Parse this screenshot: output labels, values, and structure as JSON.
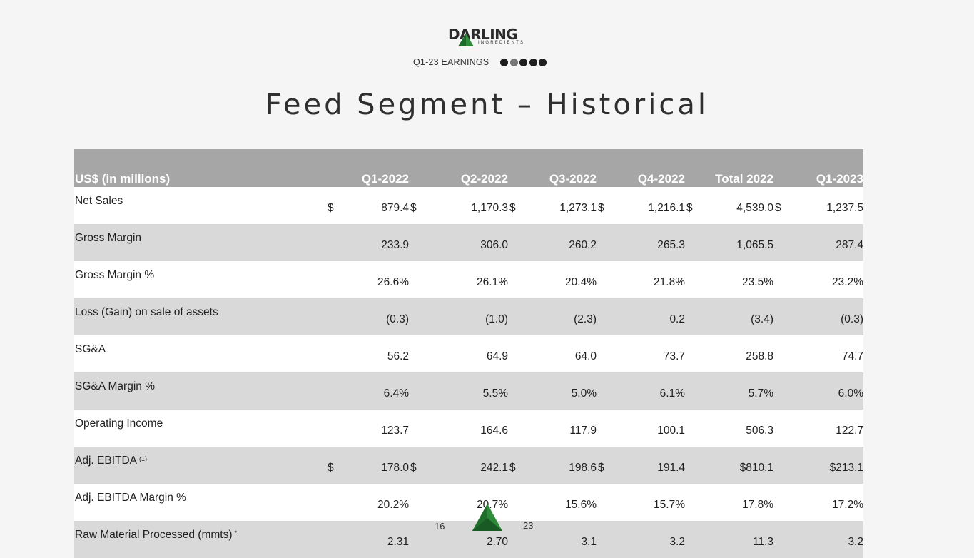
{
  "header": {
    "logo_word": "DARLING",
    "logo_sub": "INGREDIENTS",
    "subtitle": "Q1-23 EARNINGS",
    "progress_dots": 5,
    "active_dot": 1
  },
  "title": "Feed Segment – Historical",
  "table": {
    "columns": [
      "US$ (in millions)",
      "Q1-2022",
      "Q2-2022",
      "Q3-2022",
      "Q4-2022",
      "Total 2022",
      "Q1-2023"
    ],
    "rows": [
      {
        "label": "Net Sales",
        "fn": "",
        "cells": [
          {
            "d": "$",
            "v": "879.4"
          },
          {
            "d": "$",
            "v": "1,170.3"
          },
          {
            "d": "$",
            "v": "1,273.1"
          },
          {
            "d": "$",
            "v": "1,216.1"
          },
          {
            "d": "$",
            "v": "4,539.0"
          },
          {
            "d": "$",
            "v": "1,237.5"
          }
        ]
      },
      {
        "label": "Gross Margin",
        "fn": "",
        "cells": [
          {
            "d": "",
            "v": "233.9"
          },
          {
            "d": "",
            "v": "306.0"
          },
          {
            "d": "",
            "v": "260.2"
          },
          {
            "d": "",
            "v": "265.3"
          },
          {
            "d": "",
            "v": "1,065.5"
          },
          {
            "d": "",
            "v": "287.4"
          }
        ]
      },
      {
        "label": "Gross Margin %",
        "fn": "",
        "cells": [
          {
            "d": "",
            "v": "26.6%"
          },
          {
            "d": "",
            "v": "26.1%"
          },
          {
            "d": "",
            "v": "20.4%"
          },
          {
            "d": "",
            "v": "21.8%"
          },
          {
            "d": "",
            "v": "23.5%"
          },
          {
            "d": "",
            "v": "23.2%"
          }
        ]
      },
      {
        "label": "Loss (Gain) on sale of assets",
        "fn": "",
        "cells": [
          {
            "d": "",
            "v": "(0.3)"
          },
          {
            "d": "",
            "v": "(1.0)"
          },
          {
            "d": "",
            "v": "(2.3)"
          },
          {
            "d": "",
            "v": "0.2"
          },
          {
            "d": "",
            "v": "(3.4)"
          },
          {
            "d": "",
            "v": "(0.3)"
          }
        ]
      },
      {
        "label": "SG&A",
        "fn": "",
        "cells": [
          {
            "d": "",
            "v": "56.2"
          },
          {
            "d": "",
            "v": "64.9"
          },
          {
            "d": "",
            "v": "64.0"
          },
          {
            "d": "",
            "v": "73.7"
          },
          {
            "d": "",
            "v": "258.8"
          },
          {
            "d": "",
            "v": "74.7"
          }
        ]
      },
      {
        "label": "SG&A Margin %",
        "fn": "",
        "cells": [
          {
            "d": "",
            "v": "6.4%"
          },
          {
            "d": "",
            "v": "5.5%"
          },
          {
            "d": "",
            "v": "5.0%"
          },
          {
            "d": "",
            "v": "6.1%"
          },
          {
            "d": "",
            "v": "5.7%"
          },
          {
            "d": "",
            "v": "6.0%"
          }
        ]
      },
      {
        "label": "Operating Income",
        "fn": "",
        "cells": [
          {
            "d": "",
            "v": "123.7"
          },
          {
            "d": "",
            "v": "164.6"
          },
          {
            "d": "",
            "v": "117.9"
          },
          {
            "d": "",
            "v": "100.1"
          },
          {
            "d": "",
            "v": "506.3"
          },
          {
            "d": "",
            "v": "122.7"
          }
        ]
      },
      {
        "label": "Adj. EBITDA",
        "fn": "(1)",
        "cells": [
          {
            "d": "$",
            "v": "178.0"
          },
          {
            "d": "$",
            "v": "242.1"
          },
          {
            "d": "$",
            "v": "198.6"
          },
          {
            "d": "$",
            "v": "191.4"
          },
          {
            "d": "",
            "v": "$810.1"
          },
          {
            "d": "",
            "v": "$213.1"
          }
        ]
      },
      {
        "label": "Adj. EBITDA Margin %",
        "fn": "",
        "cells": [
          {
            "d": "",
            "v": "20.2%"
          },
          {
            "d": "",
            "v": "20.7%"
          },
          {
            "d": "",
            "v": "15.6%"
          },
          {
            "d": "",
            "v": "15.7%"
          },
          {
            "d": "",
            "v": "17.8%"
          },
          {
            "d": "",
            "v": "17.2%"
          }
        ]
      },
      {
        "label": "Raw Material Processed (mmts)",
        "fn": "*",
        "cells": [
          {
            "d": "",
            "v": "2.31"
          },
          {
            "d": "",
            "v": "2.70"
          },
          {
            "d": "",
            "v": "3.1"
          },
          {
            "d": "",
            "v": "3.2"
          },
          {
            "d": "",
            "v": "11.3"
          },
          {
            "d": "",
            "v": "3.2"
          }
        ]
      }
    ]
  },
  "footer": {
    "page_left": "16",
    "page_right": "23"
  },
  "colors": {
    "header_fill": "#a6a6a6",
    "row_shade": "#d9d9d9",
    "brand_green": "#2e8b3a"
  }
}
